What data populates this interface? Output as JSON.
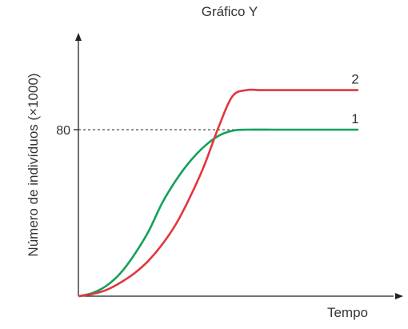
{
  "chart_data": {
    "type": "line",
    "title": "Gráfico Y",
    "xlabel": "Tempo",
    "ylabel": "Número de indivíduos (×1000)",
    "yticks": [
      {
        "value": 80,
        "label": "80"
      }
    ],
    "ylim": [
      0,
      120
    ],
    "xlim": [
      0,
      10
    ],
    "grid": false,
    "reference_line": {
      "y": 80,
      "style": "dashed",
      "x_end": 6.2
    },
    "series": [
      {
        "name": "1",
        "color": "#16a05a",
        "points": [
          [
            0,
            0
          ],
          [
            0.5,
            1.5
          ],
          [
            1,
            5
          ],
          [
            1.5,
            11
          ],
          [
            2,
            20
          ],
          [
            2.5,
            31
          ],
          [
            3,
            45
          ],
          [
            3.5,
            56
          ],
          [
            4,
            65
          ],
          [
            4.5,
            72
          ],
          [
            5,
            77
          ],
          [
            5.5,
            79.5
          ],
          [
            6,
            80
          ],
          [
            7,
            80
          ],
          [
            8,
            80
          ],
          [
            9,
            80
          ],
          [
            10,
            80
          ]
        ]
      },
      {
        "name": "2",
        "color": "#e0373e",
        "points": [
          [
            0,
            0
          ],
          [
            0.5,
            1
          ],
          [
            1,
            3
          ],
          [
            1.5,
            6.5
          ],
          [
            2,
            11
          ],
          [
            2.5,
            17
          ],
          [
            3,
            25
          ],
          [
            3.5,
            35
          ],
          [
            4,
            48
          ],
          [
            4.5,
            63
          ],
          [
            5,
            81
          ],
          [
            5.5,
            96
          ],
          [
            6,
            99
          ],
          [
            6.5,
            99
          ],
          [
            7,
            99
          ],
          [
            8,
            99
          ],
          [
            9,
            99
          ],
          [
            10,
            99
          ]
        ]
      }
    ]
  }
}
